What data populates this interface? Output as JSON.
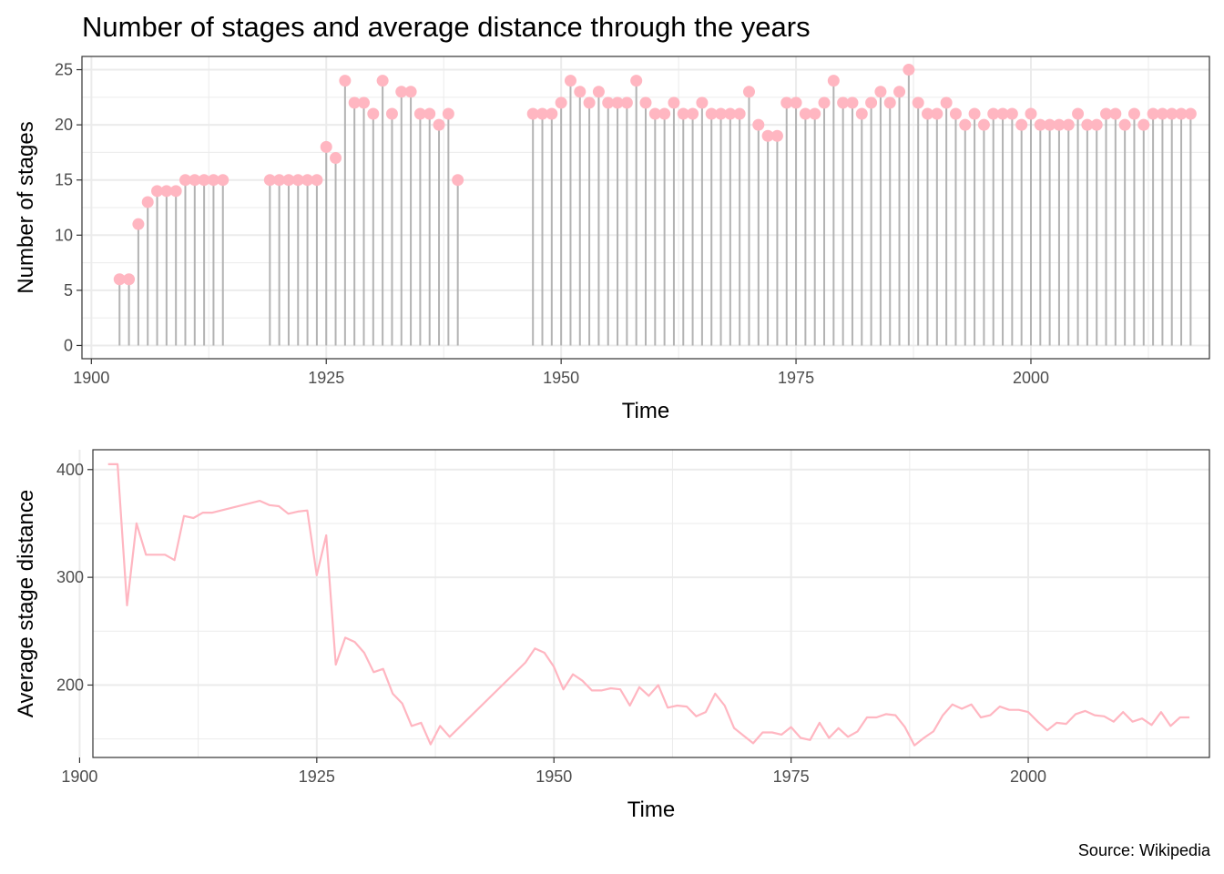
{
  "title": "Number of stages and average distance through the years",
  "caption": "Source: Wikipedia",
  "colors": {
    "accent": "#FFB6C1",
    "stem": "#B3B3B3",
    "grid": "#EBEBEB",
    "border": "#333333"
  },
  "chart_data": [
    {
      "type": "lollipop",
      "title": "Number of stages and average distance through the years",
      "xlabel": "Time",
      "ylabel": "Number of stages",
      "xlim": [
        1899,
        2019
      ],
      "ylim": [
        -1.2,
        26.2
      ],
      "x_ticks": [
        1900,
        1925,
        1950,
        1975,
        2000
      ],
      "y_ticks": [
        0,
        5,
        10,
        15,
        20,
        25
      ],
      "grid": true,
      "points": [
        [
          1903,
          6
        ],
        [
          1904,
          6
        ],
        [
          1905,
          11
        ],
        [
          1906,
          13
        ],
        [
          1907,
          14
        ],
        [
          1908,
          14
        ],
        [
          1909,
          14
        ],
        [
          1910,
          15
        ],
        [
          1911,
          15
        ],
        [
          1912,
          15
        ],
        [
          1913,
          15
        ],
        [
          1914,
          15
        ],
        [
          1919,
          15
        ],
        [
          1920,
          15
        ],
        [
          1921,
          15
        ],
        [
          1922,
          15
        ],
        [
          1923,
          15
        ],
        [
          1924,
          15
        ],
        [
          1925,
          18
        ],
        [
          1926,
          17
        ],
        [
          1927,
          24
        ],
        [
          1928,
          22
        ],
        [
          1929,
          22
        ],
        [
          1930,
          21
        ],
        [
          1931,
          24
        ],
        [
          1932,
          21
        ],
        [
          1933,
          23
        ],
        [
          1934,
          23
        ],
        [
          1935,
          21
        ],
        [
          1936,
          21
        ],
        [
          1937,
          20
        ],
        [
          1938,
          21
        ],
        [
          1939,
          15
        ],
        [
          1947,
          21
        ],
        [
          1948,
          21
        ],
        [
          1949,
          21
        ],
        [
          1950,
          22
        ],
        [
          1951,
          24
        ],
        [
          1952,
          23
        ],
        [
          1953,
          22
        ],
        [
          1954,
          23
        ],
        [
          1955,
          22
        ],
        [
          1956,
          22
        ],
        [
          1957,
          22
        ],
        [
          1958,
          24
        ],
        [
          1959,
          22
        ],
        [
          1960,
          21
        ],
        [
          1961,
          21
        ],
        [
          1962,
          22
        ],
        [
          1963,
          21
        ],
        [
          1964,
          21
        ],
        [
          1965,
          22
        ],
        [
          1966,
          21
        ],
        [
          1967,
          21
        ],
        [
          1968,
          21
        ],
        [
          1969,
          21
        ],
        [
          1970,
          23
        ],
        [
          1971,
          20
        ],
        [
          1972,
          19
        ],
        [
          1973,
          19
        ],
        [
          1974,
          22
        ],
        [
          1975,
          22
        ],
        [
          1976,
          21
        ],
        [
          1977,
          21
        ],
        [
          1978,
          22
        ],
        [
          1979,
          24
        ],
        [
          1980,
          22
        ],
        [
          1981,
          22
        ],
        [
          1982,
          21
        ],
        [
          1983,
          22
        ],
        [
          1984,
          23
        ],
        [
          1985,
          22
        ],
        [
          1986,
          23
        ],
        [
          1987,
          25
        ],
        [
          1988,
          22
        ],
        [
          1989,
          21
        ],
        [
          1990,
          21
        ],
        [
          1991,
          22
        ],
        [
          1992,
          21
        ],
        [
          1993,
          20
        ],
        [
          1994,
          21
        ],
        [
          1995,
          20
        ],
        [
          1996,
          21
        ],
        [
          1997,
          21
        ],
        [
          1998,
          21
        ],
        [
          1999,
          20
        ],
        [
          2000,
          21
        ],
        [
          2001,
          20
        ],
        [
          2002,
          20
        ],
        [
          2003,
          20
        ],
        [
          2004,
          20
        ],
        [
          2005,
          21
        ],
        [
          2006,
          20
        ],
        [
          2007,
          20
        ],
        [
          2008,
          21
        ],
        [
          2009,
          21
        ],
        [
          2010,
          20
        ],
        [
          2011,
          21
        ],
        [
          2012,
          20
        ],
        [
          2013,
          21
        ],
        [
          2014,
          21
        ],
        [
          2015,
          21
        ],
        [
          2016,
          21
        ],
        [
          2017,
          21
        ]
      ]
    },
    {
      "type": "line",
      "xlabel": "Time",
      "ylabel": "Average stage distance",
      "xlim": [
        1901.4,
        2019.1
      ],
      "ylim": [
        132.8,
        418.4
      ],
      "x_ticks": [
        1900,
        1925,
        1950,
        1975,
        2000
      ],
      "y_ticks": [
        200,
        300,
        400
      ],
      "grid": true,
      "points": [
        [
          1903,
          405
        ],
        [
          1904,
          405
        ],
        [
          1905,
          274
        ],
        [
          1906,
          350
        ],
        [
          1907,
          321
        ],
        [
          1908,
          321
        ],
        [
          1909,
          321
        ],
        [
          1910,
          316
        ],
        [
          1911,
          357
        ],
        [
          1912,
          355
        ],
        [
          1913,
          360
        ],
        [
          1914,
          360
        ],
        [
          1919,
          371
        ],
        [
          1920,
          367
        ],
        [
          1921,
          366
        ],
        [
          1922,
          359
        ],
        [
          1923,
          361
        ],
        [
          1924,
          362
        ],
        [
          1925,
          302
        ],
        [
          1926,
          339
        ],
        [
          1927,
          219
        ],
        [
          1928,
          244
        ],
        [
          1929,
          240
        ],
        [
          1930,
          230
        ],
        [
          1931,
          212
        ],
        [
          1932,
          215
        ],
        [
          1933,
          192
        ],
        [
          1934,
          183
        ],
        [
          1935,
          162
        ],
        [
          1936,
          165
        ],
        [
          1937,
          145
        ],
        [
          1938,
          162
        ],
        [
          1939,
          152
        ],
        [
          1947,
          221
        ],
        [
          1948,
          234
        ],
        [
          1949,
          230
        ],
        [
          1950,
          217
        ],
        [
          1951,
          196
        ],
        [
          1952,
          210
        ],
        [
          1953,
          204
        ],
        [
          1954,
          195
        ],
        [
          1955,
          195
        ],
        [
          1956,
          197
        ],
        [
          1957,
          196
        ],
        [
          1958,
          181
        ],
        [
          1959,
          198
        ],
        [
          1960,
          190
        ],
        [
          1961,
          200
        ],
        [
          1962,
          179
        ],
        [
          1963,
          181
        ],
        [
          1964,
          180
        ],
        [
          1965,
          171
        ],
        [
          1966,
          175
        ],
        [
          1967,
          192
        ],
        [
          1968,
          181
        ],
        [
          1969,
          160
        ],
        [
          1970,
          153
        ],
        [
          1971,
          146
        ],
        [
          1972,
          156
        ],
        [
          1973,
          156
        ],
        [
          1974,
          154
        ],
        [
          1975,
          161
        ],
        [
          1976,
          151
        ],
        [
          1977,
          149
        ],
        [
          1978,
          165
        ],
        [
          1979,
          151
        ],
        [
          1980,
          160
        ],
        [
          1981,
          152
        ],
        [
          1982,
          157
        ],
        [
          1983,
          170
        ],
        [
          1984,
          170
        ],
        [
          1985,
          173
        ],
        [
          1986,
          172
        ],
        [
          1987,
          161
        ],
        [
          1988,
          144
        ],
        [
          1989,
          151
        ],
        [
          1990,
          157
        ],
        [
          1991,
          172
        ],
        [
          1992,
          182
        ],
        [
          1993,
          178
        ],
        [
          1994,
          182
        ],
        [
          1995,
          170
        ],
        [
          1996,
          172
        ],
        [
          1997,
          180
        ],
        [
          1998,
          177
        ],
        [
          1999,
          177
        ],
        [
          2000,
          175
        ],
        [
          2001,
          166
        ],
        [
          2002,
          158
        ],
        [
          2003,
          165
        ],
        [
          2004,
          164
        ],
        [
          2005,
          173
        ],
        [
          2006,
          176
        ],
        [
          2007,
          172
        ],
        [
          2008,
          171
        ],
        [
          2009,
          166
        ],
        [
          2010,
          175
        ],
        [
          2011,
          166
        ],
        [
          2012,
          169
        ],
        [
          2013,
          163
        ],
        [
          2014,
          175
        ],
        [
          2015,
          162
        ],
        [
          2016,
          170
        ],
        [
          2017,
          170
        ]
      ]
    }
  ]
}
